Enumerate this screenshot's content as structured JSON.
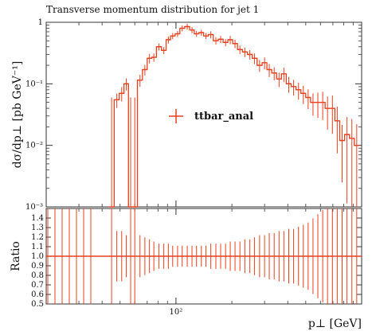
{
  "chart_data": [
    {
      "type": "line",
      "panel": "main",
      "title": "Transverse momentum distribution for jet 1",
      "xlabel": "p⊥ [GeV]",
      "ylabel": "dσ/dp⊥ [pb GeV⁻¹]",
      "x_scale": "log",
      "y_scale": "log",
      "xlim": [
        20,
        1000
      ],
      "ylim": [
        0.001,
        1
      ],
      "y_tick_labels": [
        "1",
        "10⁻¹",
        "10⁻²",
        "10⁻³"
      ],
      "legend": {
        "label": "ttbar_anal",
        "placement": "center"
      },
      "color": "#e8401c",
      "series": [
        {
          "name": "ttbar_anal",
          "style": "histogram-with-errors",
          "x": [
            45,
            48,
            51,
            54,
            57,
            60,
            64,
            68,
            72,
            76,
            81,
            86,
            91,
            96,
            102,
            108,
            115,
            122,
            129,
            137,
            145,
            154,
            164,
            174,
            185,
            196,
            208,
            221,
            235,
            250,
            265,
            282,
            300,
            318,
            338,
            359,
            381,
            405,
            430,
            457,
            485,
            515,
            547,
            581,
            617,
            655,
            696,
            739,
            785,
            834,
            886,
            941
          ],
          "y": [
            0.0005,
            0.055,
            0.07,
            0.1,
            0.0005,
            0.0005,
            0.115,
            0.17,
            0.26,
            0.27,
            0.4,
            0.35,
            0.52,
            0.6,
            0.65,
            0.8,
            0.85,
            0.75,
            0.65,
            0.68,
            0.6,
            0.63,
            0.5,
            0.53,
            0.47,
            0.52,
            0.45,
            0.36,
            0.33,
            0.3,
            0.26,
            0.2,
            0.22,
            0.17,
            0.15,
            0.12,
            0.145,
            0.1,
            0.09,
            0.08,
            0.07,
            0.06,
            0.05,
            0.05,
            0.05,
            0.04,
            0.04,
            0.025,
            0.012,
            0.015,
            0.013,
            0.01
          ],
          "y_err": [
            0.0,
            0.12,
            0.12,
            0.1,
            0.0,
            0.0,
            0.1,
            0.09,
            0.08,
            0.07,
            0.06,
            0.06,
            0.06,
            0.05,
            0.05,
            0.05,
            0.05,
            0.05,
            0.05,
            0.05,
            0.05,
            0.06,
            0.06,
            0.06,
            0.06,
            0.07,
            0.07,
            0.07,
            0.08,
            0.08,
            0.09,
            0.1,
            0.1,
            0.11,
            0.11,
            0.12,
            0.12,
            0.13,
            0.13,
            0.14,
            0.15,
            0.16,
            0.18,
            0.2,
            0.22,
            0.25,
            0.28,
            0.32,
            0.36,
            0.42,
            0.48,
            0.55
          ]
        }
      ]
    },
    {
      "type": "line",
      "panel": "ratio",
      "xlabel": "p⊥ [GeV]",
      "ylabel": "Ratio",
      "x_scale": "log",
      "xlim": [
        20,
        1000
      ],
      "ylim": [
        0.5,
        1.5
      ],
      "y_ticks": [
        0.5,
        0.6,
        0.7,
        0.8,
        0.9,
        1.0,
        1.1,
        1.2,
        1.3,
        1.4
      ],
      "y_tick_labels": [
        "0.5",
        "0.6",
        "0.7",
        "0.8",
        "0.9",
        "1.0",
        "1.1",
        "1.2",
        "1.3",
        "1.4"
      ],
      "x_tick_labels": [
        "10²"
      ],
      "color": "#e8401c",
      "series": [
        {
          "name": "ttbar_anal",
          "value": 1.0
        }
      ]
    }
  ]
}
